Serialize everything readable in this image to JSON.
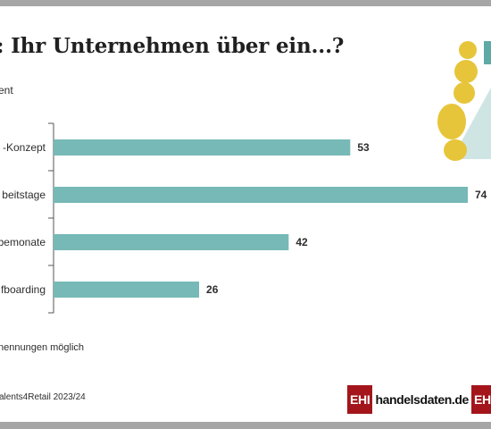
{
  "title": ": Ihr Unternehmen über ein...?",
  "subtitle": "ent",
  "footnote": "nennungen möglich",
  "source": "alents4Retail 2023/24",
  "logos": {
    "main_box": "EHI",
    "main_text": "handelsdaten.de",
    "second_box": "EH"
  },
  "colors": {
    "bar": "#76b9b6",
    "illustration_yellow": "#e7c53a",
    "illustration_teal": "#5fa9a7",
    "illustration_light": "#cfe5e4",
    "frame": "#a6a6a6",
    "logo_red": "#a3151b"
  },
  "chart_data": {
    "type": "bar",
    "orientation": "horizontal",
    "title": ": Ihr Unternehmen über ein...?",
    "categories": [
      "-Konzept",
      "beitstage",
      "bemonate",
      "fboarding"
    ],
    "values": [
      53,
      74,
      42,
      26
    ],
    "value_labels": [
      "53",
      "74",
      "42",
      "26"
    ],
    "xlim": [
      0,
      74
    ],
    "grid": false,
    "legend": "none"
  }
}
